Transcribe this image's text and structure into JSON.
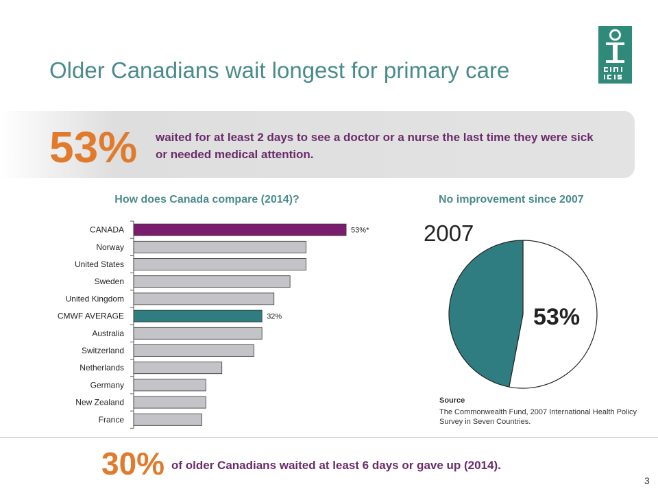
{
  "header": {
    "title": "Older Canadians wait longest for primary care"
  },
  "banner": {
    "percent": "53%",
    "text": "waited for at least 2 days to see a doctor or a nurse the last time they were sick or needed medical attention."
  },
  "left_subtitle": "How does Canada compare (2014)?",
  "right_subtitle": "No improvement since 2007",
  "pie_year": "2007",
  "pie_percent_label": "53%",
  "source": {
    "heading": "Source",
    "text": "The Commonwealth Fund, 2007 International Health Policy Survey in Seven Countries."
  },
  "footer": {
    "percent": "30%",
    "text": "of older Canadians waited at least 6 days or gave up (2014).",
    "page_number": "3"
  },
  "colors": {
    "canada": "#7a1d6e",
    "average": "#2f7d80",
    "other": "#c4c4c8",
    "pie_teal": "#2f7d80",
    "pie_white": "#ffffff",
    "accent_orange": "#e07b2e"
  },
  "chart_data": [
    {
      "type": "bar",
      "orientation": "horizontal",
      "categories": [
        "CANADA",
        "Norway",
        "United States",
        "Sweden",
        "United Kingdom",
        "CMWF AVERAGE",
        "Australia",
        "Switzerland",
        "Netherlands",
        "Germany",
        "New Zealand",
        "France"
      ],
      "values": [
        53,
        43,
        43,
        39,
        35,
        32,
        32,
        30,
        22,
        18,
        18,
        17
      ],
      "data_labels": [
        "53%*",
        "",
        "",
        "",
        "",
        "32%",
        "",
        "",
        "",
        "",
        "",
        ""
      ],
      "xlim": [
        0,
        100
      ],
      "grid": false
    },
    {
      "type": "pie",
      "labels": [
        "53%",
        ""
      ],
      "values": [
        53,
        47
      ]
    }
  ]
}
